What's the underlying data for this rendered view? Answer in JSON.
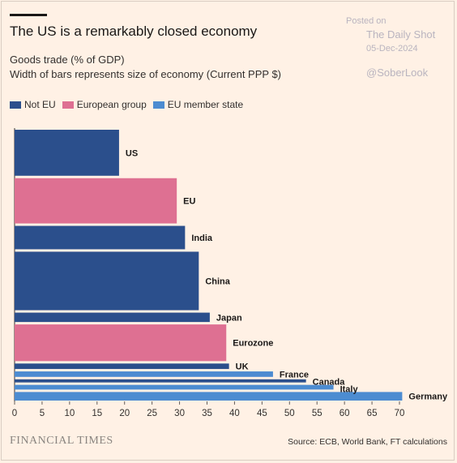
{
  "header": {
    "title": "The US is a remarkably closed economy",
    "subtitle1": "Goods trade (% of GDP)",
    "subtitle2": "Width of bars represents size of economy (Current PPP $)"
  },
  "watermark": {
    "posted": "Posted on",
    "brand": "The Daily Shot",
    "date": "05-Dec-2024",
    "handle": "@SoberLook"
  },
  "legend": [
    {
      "label": "Not EU",
      "color": "#2b4f8c"
    },
    {
      "label": "European group",
      "color": "#de7092"
    },
    {
      "label": "EU member state",
      "color": "#4c8cd1"
    }
  ],
  "footer": {
    "logo": "FINANCIAL TIMES",
    "source": "Source: ECB, World Bank, FT calculations"
  },
  "chart_data": {
    "type": "bar",
    "orientation": "horizontal",
    "xlim": [
      0,
      70
    ],
    "xticks": [
      "0",
      "5",
      "10",
      "15",
      "20",
      "25",
      "30",
      "35",
      "40",
      "45",
      "50",
      "55",
      "60",
      "65",
      "70"
    ],
    "note": "",
    "bars": [
      {
        "label": "US",
        "value": 19,
        "size": 59,
        "group": "Not EU",
        "color": "#2b4f8c"
      },
      {
        "label": "EU",
        "value": 29.5,
        "size": 58,
        "group": "European group",
        "color": "#de7092"
      },
      {
        "label": "India",
        "value": 31,
        "size": 30,
        "group": "Not EU",
        "color": "#2b4f8c"
      },
      {
        "label": "China",
        "value": 33.5,
        "size": 75,
        "group": "Not EU",
        "color": "#2b4f8c"
      },
      {
        "label": "Japan",
        "value": 35.5,
        "size": 12,
        "group": "Not EU",
        "color": "#2b4f8c"
      },
      {
        "label": "Eurozone",
        "value": 38.5,
        "size": 47,
        "group": "European group",
        "color": "#de7092"
      },
      {
        "label": "UK",
        "value": 39,
        "size": 7,
        "group": "Not EU",
        "color": "#2b4f8c"
      },
      {
        "label": "France",
        "value": 47,
        "size": 7,
        "group": "EU member state",
        "color": "#4c8cd1"
      },
      {
        "label": "Canada",
        "value": 53,
        "size": 4,
        "group": "Not EU",
        "color": "#2b4f8c"
      },
      {
        "label": "Italy",
        "value": 58,
        "size": 6,
        "group": "EU member state",
        "color": "#4c8cd1"
      },
      {
        "label": "Germany",
        "value": 70.5,
        "size": 11,
        "group": "EU member state",
        "color": "#4c8cd1"
      }
    ]
  }
}
